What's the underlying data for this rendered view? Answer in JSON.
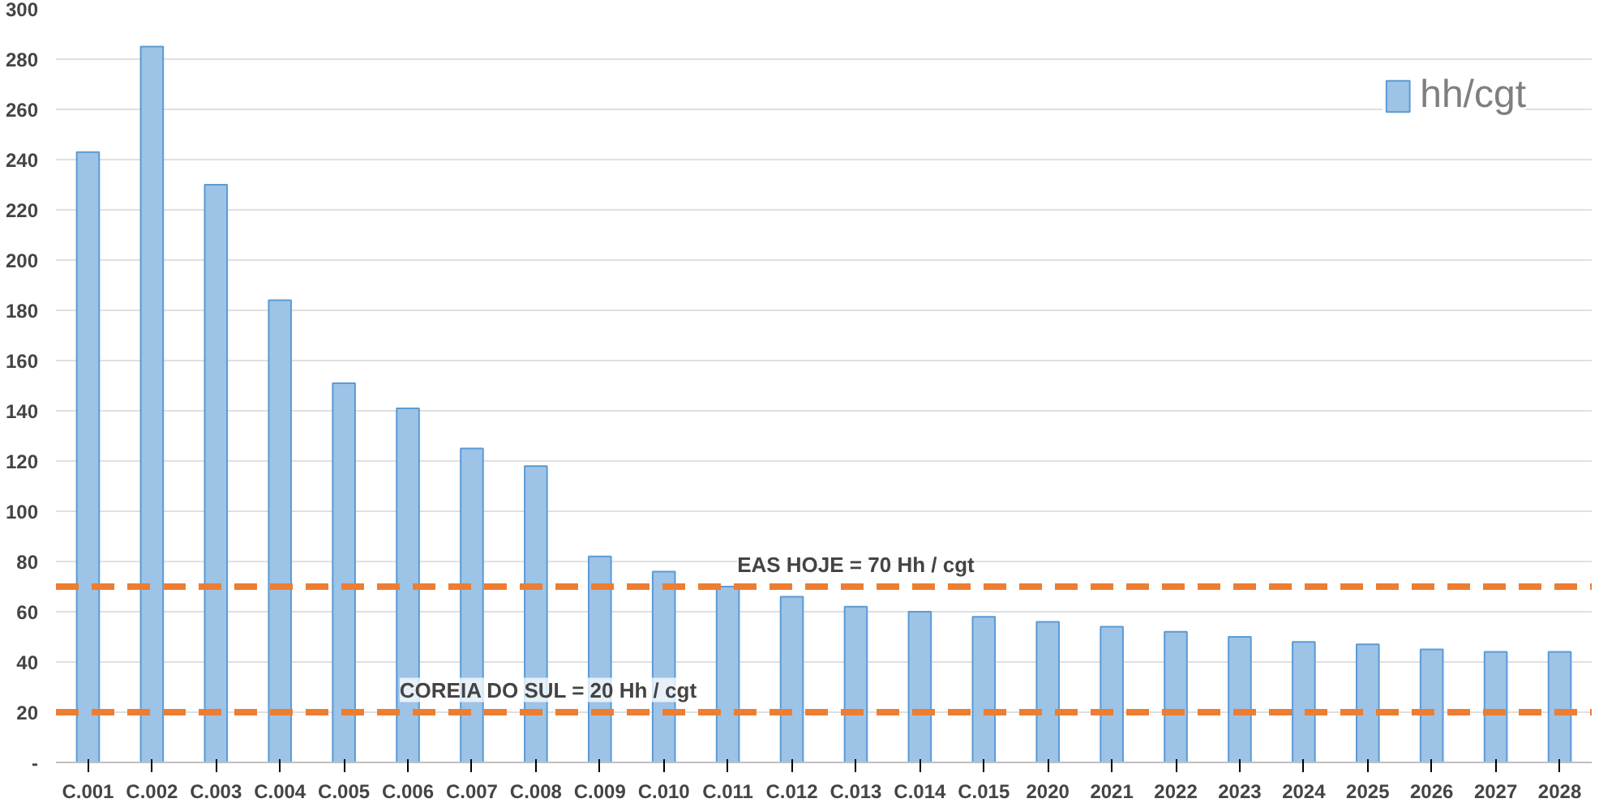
{
  "chart_data": {
    "type": "bar",
    "categories": [
      "C.001",
      "C.002",
      "C.003",
      "C.004",
      "C.005",
      "C.006",
      "C.007",
      "C.008",
      "C.009",
      "C.010",
      "C.011",
      "C.012",
      "C.013",
      "C.014",
      "C.015",
      "2020",
      "2021",
      "2022",
      "2023",
      "2024",
      "2025",
      "2026",
      "2027",
      "2028"
    ],
    "series": [
      {
        "name": "hh/cgt",
        "color": "#9dc3e6",
        "values": [
          243,
          285,
          230,
          184,
          151,
          141,
          125,
          118,
          82,
          76,
          70,
          66,
          62,
          60,
          58,
          56,
          54,
          52,
          50,
          48,
          47,
          45,
          44,
          44
        ]
      }
    ],
    "ylim": [
      0,
      300
    ],
    "yticks": [
      {
        "value": 0,
        "label": "-"
      },
      20,
      40,
      60,
      80,
      100,
      120,
      140,
      160,
      180,
      200,
      220,
      240,
      260,
      280,
      300
    ],
    "ref_lines": [
      {
        "axis": "y",
        "value": 70,
        "label": "EAS HOJE = 70 Hh / cgt",
        "color": "#ed7d31",
        "line_style": "dashed"
      },
      {
        "axis": "y",
        "value": 20,
        "label": "COREIA DO SUL = 20 Hh / cgt",
        "color": "#ed7d31",
        "line_style": "dashed"
      }
    ],
    "grid": "y",
    "legend": "top right"
  }
}
